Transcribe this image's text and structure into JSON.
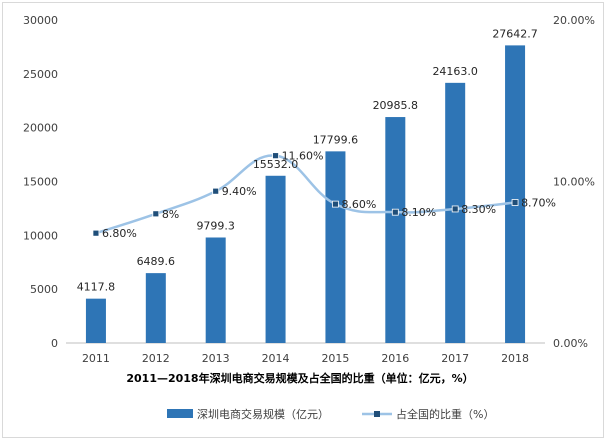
{
  "chart_data": {
    "type": "bar",
    "title": "2011—2018年深圳电商交易规模及占全国的比重（单位：亿元，%）",
    "categories": [
      "2011",
      "2012",
      "2013",
      "2014",
      "2015",
      "2016",
      "2017",
      "2018"
    ],
    "series": [
      {
        "name": "深圳电商交易规模（亿元）",
        "type": "bar",
        "axis": "left",
        "color": "#2e75b6",
        "values": [
          4117.8,
          6489.6,
          9799.3,
          15532.0,
          17799.6,
          20985.8,
          24163.0,
          27642.7
        ],
        "labels": [
          "4117.8",
          "6489.6",
          "9799.3",
          "15532.0",
          "17799.6",
          "20985.8",
          "24163.0",
          "27642.7"
        ]
      },
      {
        "name": "占全国的比重（%）",
        "type": "line",
        "axis": "right",
        "color": "#9dc3e6",
        "marker_color": "#1f4e79",
        "values": [
          6.8,
          8.0,
          9.4,
          11.6,
          8.6,
          8.1,
          8.3,
          8.7
        ],
        "labels": [
          "6.80%",
          "8%",
          "9.40%",
          "11.60%",
          "8.60%",
          "8.10%",
          "8.30%",
          "8.70%"
        ]
      }
    ],
    "y_left": {
      "ylim": [
        0,
        30000
      ],
      "ticks": [
        "0",
        "5000",
        "10000",
        "15000",
        "20000",
        "25000",
        "30000"
      ]
    },
    "y_right": {
      "ylim": [
        0,
        20
      ],
      "ticks": [
        "0.00%",
        "10.00%",
        "20.00%"
      ]
    },
    "grid": false,
    "legend_position": "bottom"
  }
}
